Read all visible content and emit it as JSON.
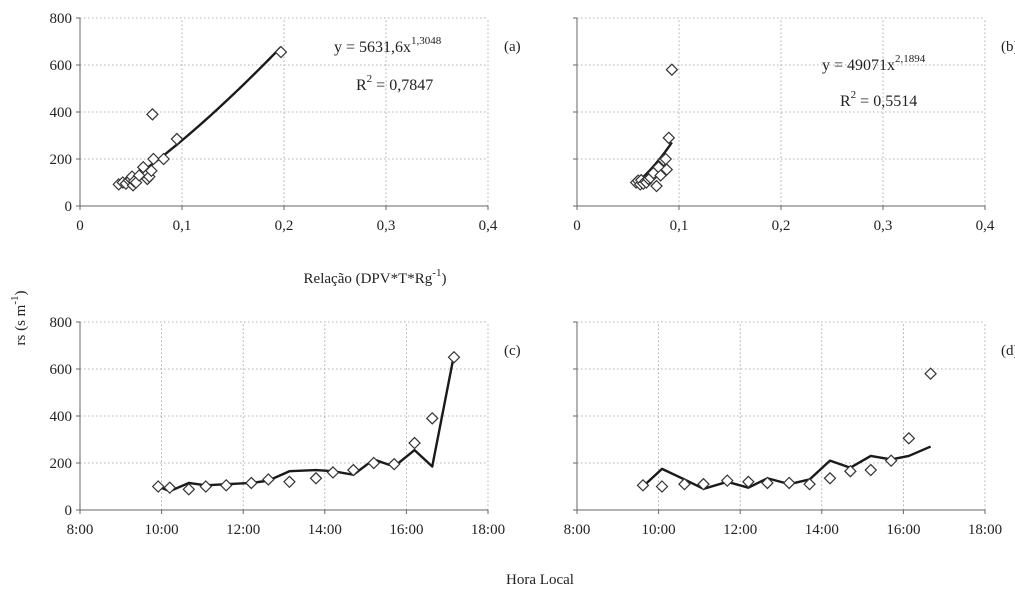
{
  "figure": {
    "ylabel": "rs (s m",
    "ylabel_sup": "-1",
    "ylabel_tail": ")",
    "xlabel_top": "Relação (DPV*T*Rg",
    "xlabel_top_sup": "-1",
    "xlabel_top_tail": ")",
    "xlabel_bottom": "Hora Local"
  },
  "colors": {
    "line": "#1a1a1a",
    "marker": "#333333",
    "grid": "#999999",
    "axis": "#666666"
  },
  "chart_data": [
    {
      "id": "a",
      "type": "scatter",
      "panel_label": "(a)",
      "xlim": [
        0,
        0.4
      ],
      "ylim": [
        0,
        800
      ],
      "xticks": [
        "0",
        "0,1",
        "0,2",
        "0,3",
        "0,4"
      ],
      "xtick_values": [
        0,
        0.1,
        0.2,
        0.3,
        0.4
      ],
      "yticks": [
        "0",
        "200",
        "400",
        "600",
        "800"
      ],
      "ytick_values": [
        0,
        200,
        400,
        600,
        800
      ],
      "equation": "y = 5631,6x",
      "equation_exp": "1,3048",
      "r2_label": "R",
      "r2_sup": "2",
      "r2_value": " = 0,7847",
      "fit": {
        "a": 5631.6,
        "b": 1.3048,
        "x_range": [
          0.04,
          0.197
        ]
      },
      "x": [
        0.038,
        0.042,
        0.045,
        0.048,
        0.05,
        0.051,
        0.052,
        0.053,
        0.055,
        0.058,
        0.062,
        0.066,
        0.068,
        0.07,
        0.072,
        0.082,
        0.095,
        0.071,
        0.197
      ],
      "y": [
        92,
        100,
        95,
        110,
        115,
        125,
        88,
        105,
        100,
        130,
        165,
        115,
        125,
        150,
        200,
        200,
        285,
        390,
        655
      ]
    },
    {
      "id": "b",
      "type": "scatter",
      "panel_label": "(b)",
      "xlim": [
        0,
        0.4
      ],
      "ylim": [
        0,
        800
      ],
      "xticks": [
        "0",
        "0,1",
        "0,2",
        "0,3",
        "0,4"
      ],
      "xtick_values": [
        0,
        0.1,
        0.2,
        0.3,
        0.4
      ],
      "yticks": [],
      "ytick_values": [
        0,
        200,
        400,
        600,
        800
      ],
      "equation": "y = 49071x",
      "equation_exp": "2,1894",
      "r2_label": "R",
      "r2_sup": "2",
      "r2_value": " = 0,5514",
      "fit": {
        "a": 49071,
        "b": 2.1894,
        "x_range": [
          0.058,
          0.093
        ]
      },
      "x": [
        0.058,
        0.06,
        0.062,
        0.063,
        0.065,
        0.067,
        0.068,
        0.07,
        0.072,
        0.075,
        0.078,
        0.08,
        0.082,
        0.085,
        0.087,
        0.088,
        0.09,
        0.093
      ],
      "y": [
        100,
        108,
        92,
        110,
        95,
        105,
        100,
        115,
        120,
        140,
        85,
        165,
        130,
        195,
        200,
        155,
        290,
        580
      ]
    },
    {
      "id": "c",
      "type": "line",
      "panel_label": "(c)",
      "xlim": [
        480,
        1080
      ],
      "ylim": [
        0,
        800
      ],
      "xticks": [
        "8:00",
        "10:00",
        "12:00",
        "14:00",
        "16:00",
        "18:00"
      ],
      "xtick_values": [
        480,
        600,
        720,
        840,
        960,
        1080
      ],
      "yticks": [
        "0",
        "200",
        "400",
        "600",
        "800"
      ],
      "ytick_values": [
        0,
        200,
        400,
        600,
        800
      ],
      "points_x": [
        595,
        612,
        640,
        665,
        695,
        732,
        757,
        788,
        827,
        852,
        882,
        912,
        942,
        972,
        998,
        1030
      ],
      "points_y": [
        100,
        95,
        88,
        100,
        105,
        115,
        130,
        120,
        135,
        160,
        170,
        200,
        195,
        285,
        390,
        650
      ],
      "line_x": [
        595,
        612,
        640,
        665,
        695,
        732,
        757,
        788,
        827,
        852,
        882,
        912,
        942,
        972,
        998,
        1030
      ],
      "line_y": [
        100,
        80,
        115,
        105,
        110,
        115,
        125,
        165,
        170,
        165,
        150,
        215,
        185,
        255,
        185,
        660
      ]
    },
    {
      "id": "d",
      "type": "line",
      "panel_label": "(d)",
      "xlim": [
        480,
        1080
      ],
      "ylim": [
        0,
        800
      ],
      "xticks": [
        "8:00",
        "10:00",
        "12:00",
        "14:00",
        "16:00",
        "18:00"
      ],
      "xtick_values": [
        480,
        600,
        720,
        840,
        960,
        1080
      ],
      "yticks": [],
      "ytick_values": [
        0,
        200,
        400,
        600,
        800
      ],
      "points_x": [
        577,
        605,
        638,
        666,
        701,
        732,
        760,
        792,
        822,
        852,
        882,
        912,
        942,
        968,
        1000
      ],
      "points_y": [
        105,
        100,
        110,
        110,
        125,
        120,
        115,
        115,
        110,
        135,
        165,
        170,
        210,
        305,
        580
      ],
      "line_x": [
        577,
        605,
        638,
        666,
        701,
        732,
        760,
        792,
        822,
        852,
        882,
        912,
        942,
        968,
        1000
      ],
      "line_y": [
        100,
        175,
        130,
        90,
        120,
        95,
        135,
        110,
        130,
        210,
        180,
        230,
        215,
        230,
        270
      ]
    }
  ]
}
